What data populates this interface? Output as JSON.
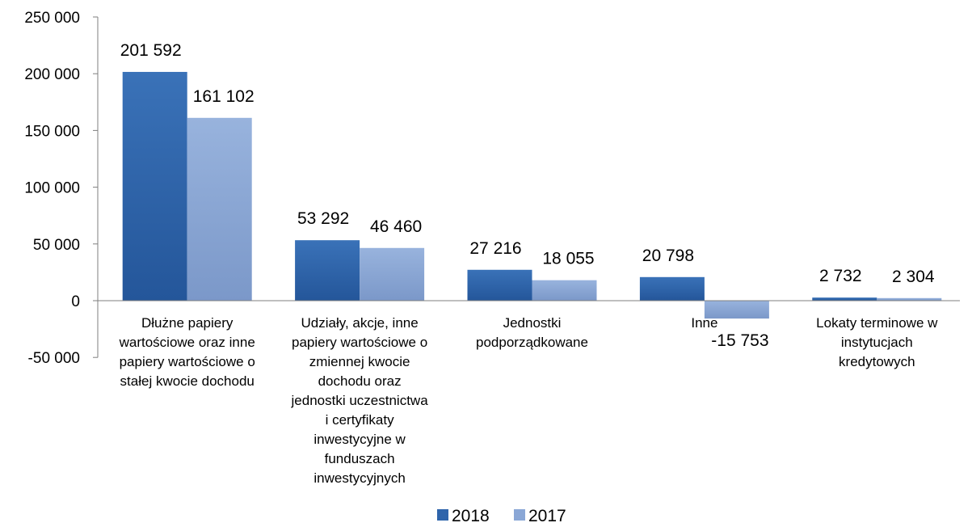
{
  "chart_data": {
    "type": "bar",
    "title": "",
    "xlabel": "",
    "ylabel": "",
    "ylim": [
      -50000,
      250000
    ],
    "yticks": [
      -50000,
      0,
      50000,
      100000,
      150000,
      200000,
      250000
    ],
    "ytick_labels": [
      "-50 000",
      "0",
      "50 000",
      "100 000",
      "150 000",
      "200 000",
      "250 000"
    ],
    "grid": false,
    "legend_position": "bottom",
    "categories": [
      [
        "Dłużne papiery",
        "wartościowe oraz inne",
        "papiery wartościowe o",
        "stałej kwocie dochodu"
      ],
      [
        "Udziały, akcje, inne",
        "papiery wartościowe o",
        "zmiennej kwocie",
        "dochodu oraz",
        "jednostki uczestnictwa",
        "i certyfikaty",
        "inwestycyjne w",
        "funduszach",
        "inwestycyjnych"
      ],
      [
        "Jednostki",
        "podporządkowane"
      ],
      [
        "Inne"
      ],
      [
        "Lokaty terminowe w",
        "instytucjach",
        "kredytowych"
      ]
    ],
    "series": [
      {
        "name": "2018",
        "color": "#2e64ab",
        "values": [
          201592,
          53292,
          27216,
          20798,
          2732
        ],
        "labels": [
          "201 592",
          "53 292",
          "27 216",
          "20 798",
          "2 732"
        ]
      },
      {
        "name": "2017",
        "color": "#8aa7d6",
        "values": [
          161102,
          46460,
          18055,
          -15753,
          2304
        ],
        "labels": [
          "161 102",
          "46 460",
          "18 055",
          "-15 753",
          "2 304"
        ]
      }
    ]
  }
}
